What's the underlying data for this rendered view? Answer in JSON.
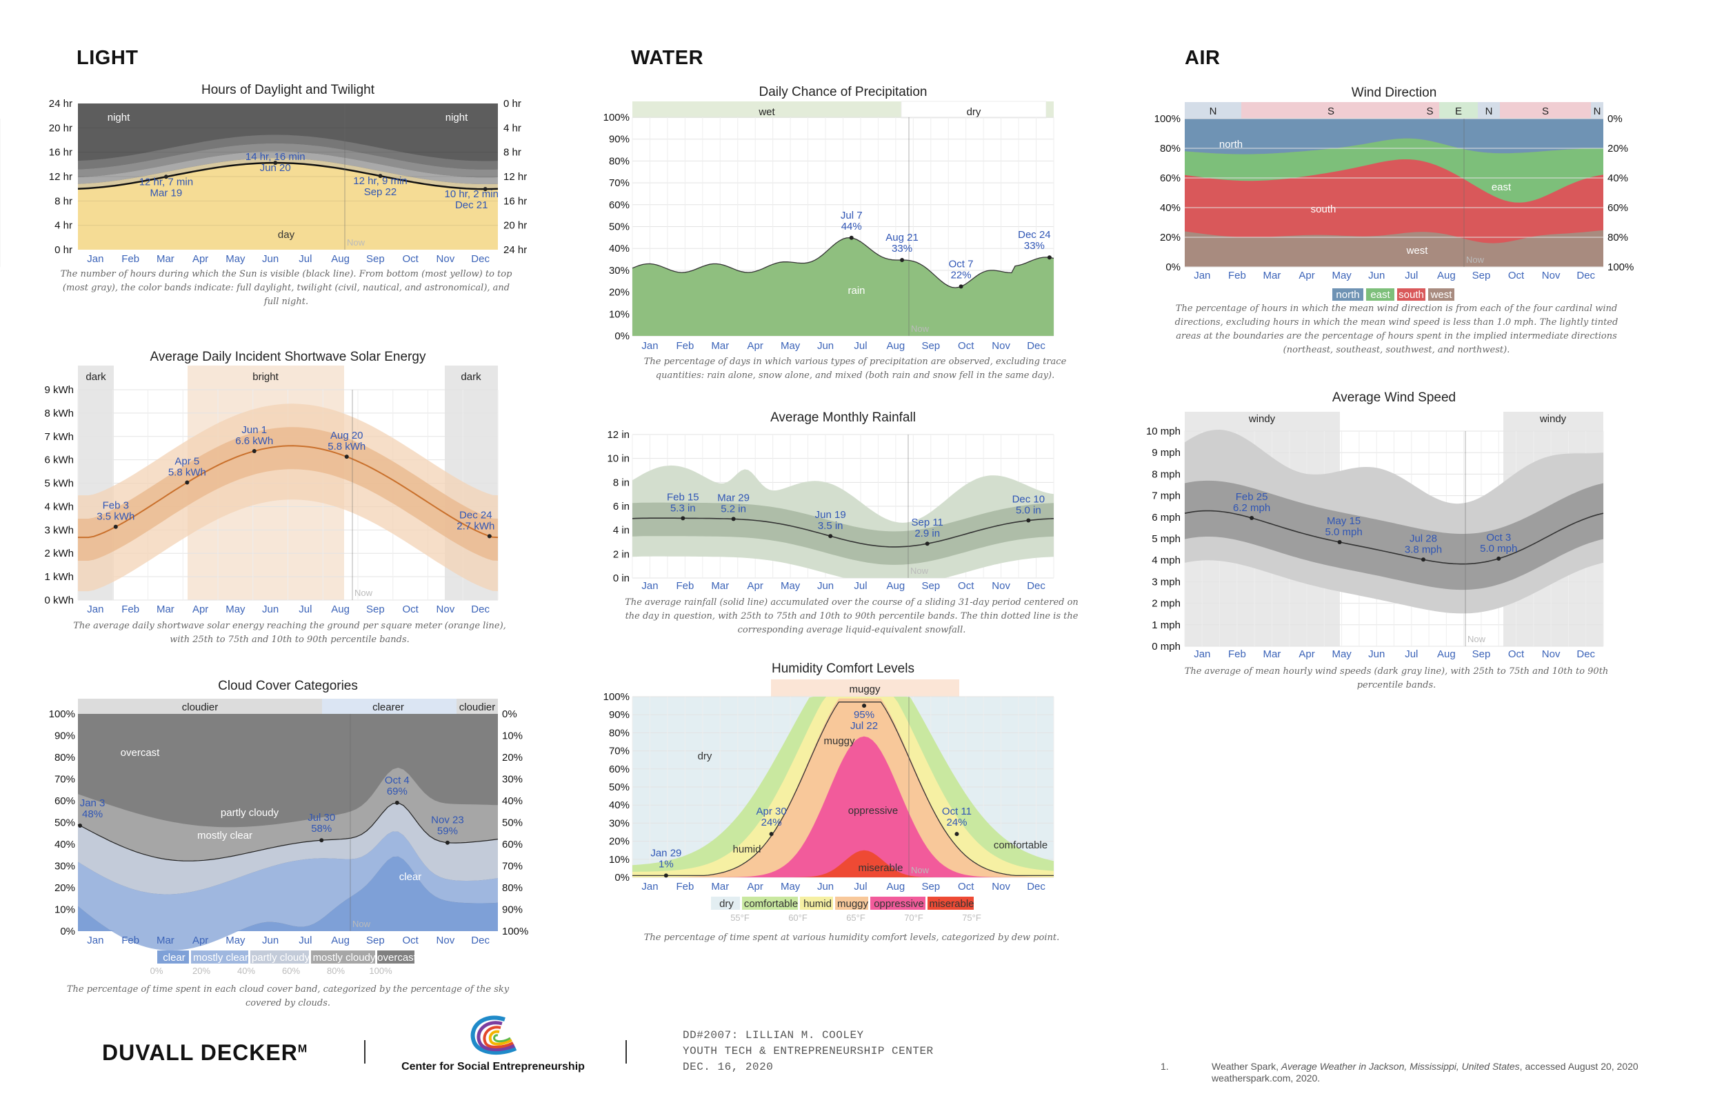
{
  "sections": {
    "light": "LIGHT",
    "water": "WATER",
    "air": "AIR"
  },
  "months": [
    "Jan",
    "Feb",
    "Mar",
    "Apr",
    "May",
    "Jun",
    "Jul",
    "Aug",
    "Sep",
    "Oct",
    "Nov",
    "Dec"
  ],
  "now_label": "Now",
  "colors": {
    "annotation": "#2f55b5",
    "month": "#3b63b8",
    "solar": "#c9702c",
    "rain": "#8fbf7f"
  },
  "charts": {
    "daylight": {
      "title": "Hours of Daylight and Twilight",
      "left_ticks": [
        "24 hr",
        "20 hr",
        "16 hr",
        "12 hr",
        "8 hr",
        "4 hr",
        "0 hr"
      ],
      "right_ticks": [
        "0 hr",
        "4 hr",
        "8 hr",
        "12 hr",
        "16 hr",
        "20 hr",
        "24 hr"
      ],
      "labels": {
        "night_left": "night",
        "night_right": "night",
        "day": "day"
      },
      "annotations": [
        {
          "l1": "12 hr, 7 min",
          "l2": "Mar 19"
        },
        {
          "l1": "14 hr, 16 min",
          "l2": "Jun 20"
        },
        {
          "l1": "12 hr, 9 min",
          "l2": "Sep 22"
        },
        {
          "l1": "10 hr, 2 min",
          "l2": "Dec 21"
        }
      ],
      "caption": "The number of hours during which the Sun is visible (black line). From bottom (most yellow) to top (most gray), the color bands indicate: full daylight, twilight (civil, nautical, and astronomical), and full night."
    },
    "solar": {
      "title": "Average Daily Incident Shortwave Solar Energy",
      "ticks": [
        "9 kWh",
        "8 kWh",
        "7 kWh",
        "6 kWh",
        "5 kWh",
        "4 kWh",
        "3 kWh",
        "2 kWh",
        "1 kWh",
        "0 kWh"
      ],
      "bands": {
        "dark_left": "dark",
        "bright": "bright",
        "dark_right": "dark"
      },
      "annotations": [
        {
          "l1": "Feb 3",
          "l2": "3.5 kWh"
        },
        {
          "l1": "Apr 5",
          "l2": "5.8 kWh"
        },
        {
          "l1": "Jun 1",
          "l2": "6.6 kWh"
        },
        {
          "l1": "Aug 20",
          "l2": "5.8 kWh"
        },
        {
          "l1": "Dec 24",
          "l2": "2.7 kWh"
        }
      ],
      "caption": "The average daily shortwave solar energy reaching the ground per square meter (orange line), with 25th to 75th and 10th to 90th percentile bands."
    },
    "cloud": {
      "title": "Cloud Cover Categories",
      "left_ticks": [
        "100%",
        "90%",
        "80%",
        "70%",
        "60%",
        "50%",
        "40%",
        "30%",
        "20%",
        "10%",
        "0%"
      ],
      "right_ticks": [
        "0%",
        "10%",
        "20%",
        "30%",
        "40%",
        "50%",
        "60%",
        "70%",
        "80%",
        "90%",
        "100%"
      ],
      "bands": {
        "cloudier": "cloudier",
        "clearer": "clearer",
        "cloudier2": "cloudier"
      },
      "labels": {
        "overcast": "overcast",
        "partly": "partly cloudy",
        "mostly": "mostly clear",
        "clear": "clear"
      },
      "annotations": [
        {
          "l1": "Jan 3",
          "l2": "48%"
        },
        {
          "l1": "Jul 30",
          "l2": "58%"
        },
        {
          "l1": "Oct 4",
          "l2": "69%"
        },
        {
          "l1": "Nov 23",
          "l2": "59%"
        }
      ],
      "legend": [
        "clear",
        "mostly clear",
        "partly cloudy",
        "mostly cloudy",
        "overcast"
      ],
      "legend_ticks": [
        "0%",
        "20%",
        "40%",
        "60%",
        "80%",
        "100%"
      ],
      "caption": "The percentage of time spent in each cloud cover band, categorized by the percentage of the sky covered by clouds."
    },
    "precip": {
      "title": "Daily Chance of Precipitation",
      "ticks": [
        "100%",
        "90%",
        "80%",
        "70%",
        "60%",
        "50%",
        "40%",
        "30%",
        "20%",
        "10%",
        "0%"
      ],
      "bands": {
        "wet": "wet",
        "dry": "dry"
      },
      "labels": {
        "rain": "rain"
      },
      "annotations": [
        {
          "l1": "Jul 7",
          "l2": "44%"
        },
        {
          "l1": "Aug 21",
          "l2": "33%"
        },
        {
          "l1": "Oct 7",
          "l2": "22%"
        },
        {
          "l1": "Dec 24",
          "l2": "33%"
        }
      ],
      "caption": "The percentage of days in which various types of precipitation are observed, excluding trace quantities: rain alone, snow alone, and mixed (both rain and snow fell in the same day)."
    },
    "rainfall": {
      "title": "Average Monthly Rainfall",
      "ticks": [
        "12 in",
        "10 in",
        "8 in",
        "6 in",
        "4 in",
        "2 in",
        "0 in"
      ],
      "annotations": [
        {
          "l1": "Feb 15",
          "l2": "5.3 in"
        },
        {
          "l1": "Mar 29",
          "l2": "5.2 in"
        },
        {
          "l1": "Jun 19",
          "l2": "3.5 in"
        },
        {
          "l1": "Sep 11",
          "l2": "2.9 in"
        },
        {
          "l1": "Dec 10",
          "l2": "5.0 in"
        }
      ],
      "caption": "The average rainfall (solid line) accumulated over the course of a sliding 31-day period centered on the day in question, with 25th to 75th and 10th to 90th percentile bands. The thin dotted line is the corresponding average liquid-equivalent snowfall."
    },
    "humidity": {
      "title": "Humidity Comfort Levels",
      "ticks": [
        "100%",
        "90%",
        "80%",
        "70%",
        "60%",
        "50%",
        "40%",
        "30%",
        "20%",
        "10%",
        "0%"
      ],
      "bands": {
        "muggy": "muggy"
      },
      "labels": {
        "dry": "dry",
        "humid": "humid",
        "muggy": "muggy",
        "oppressive": "oppressive",
        "miserable": "miserable",
        "comfortable": "comfortable"
      },
      "annotations": [
        {
          "l1": "Jan 29",
          "l2": "1%"
        },
        {
          "l1": "Apr 30",
          "l2": "24%"
        },
        {
          "l1": "95%",
          "l2": "Jul 22"
        },
        {
          "l1": "Oct 11",
          "l2": "24%"
        }
      ],
      "legend": [
        "dry",
        "comfortable",
        "humid",
        "muggy",
        "oppressive",
        "miserable"
      ],
      "legend_ticks": [
        "55°F",
        "60°F",
        "65°F",
        "70°F",
        "75°F"
      ],
      "caption": "The percentage of time spent at various humidity comfort levels, categorized by dew point."
    },
    "wind_dir": {
      "title": "Wind Direction",
      "left_ticks": [
        "100%",
        "80%",
        "60%",
        "40%",
        "20%",
        "0%"
      ],
      "right_ticks": [
        "0%",
        "20%",
        "40%",
        "60%",
        "80%",
        "100%"
      ],
      "bands": [
        "N",
        "S",
        "S",
        "E",
        "N",
        "S",
        "N"
      ],
      "labels": {
        "north": "north",
        "south": "south",
        "east": "east",
        "west": "west"
      },
      "legend": [
        "north",
        "east",
        "south",
        "west"
      ],
      "caption": "The percentage of hours in which the mean wind direction is from each of the four cardinal wind directions, excluding hours in which the mean wind speed is less than 1.0 mph. The lightly tinted areas at the boundaries are the percentage of hours spent in the implied intermediate directions (northeast, southeast, southwest, and northwest)."
    },
    "wind_speed": {
      "title": "Average Wind Speed",
      "ticks": [
        "10 mph",
        "9 mph",
        "8 mph",
        "7 mph",
        "6 mph",
        "5 mph",
        "4 mph",
        "3 mph",
        "2 mph",
        "1 mph",
        "0 mph"
      ],
      "bands": {
        "windy_left": "windy",
        "windy_right": "windy"
      },
      "annotations": [
        {
          "l1": "Feb 25",
          "l2": "6.2 mph"
        },
        {
          "l1": "May 15",
          "l2": "5.0 mph"
        },
        {
          "l1": "Jul 28",
          "l2": "3.8 mph"
        },
        {
          "l1": "Oct 3",
          "l2": "5.0 mph"
        }
      ],
      "caption": "The average of mean hourly wind speeds (dark gray line), with 25th to 75th and 10th to 90th percentile bands."
    }
  },
  "chart_data": [
    {
      "type": "area",
      "title": "Hours of Daylight and Twilight",
      "series": [
        {
          "name": "daylight hours",
          "x": [
            "Mar 19",
            "Jun 20",
            "Sep 22",
            "Dec 21"
          ],
          "values": [
            12.12,
            14.27,
            12.15,
            10.03
          ]
        }
      ],
      "ylim": [
        0,
        24
      ]
    },
    {
      "type": "line",
      "title": "Average Daily Incident Shortwave Solar Energy",
      "ylabel": "kWh",
      "x": [
        "Feb 3",
        "Apr 5",
        "Jun 1",
        "Aug 20",
        "Dec 24"
      ],
      "values": [
        3.5,
        5.8,
        6.6,
        5.8,
        2.7
      ],
      "ylim": [
        0,
        9
      ]
    },
    {
      "type": "area",
      "title": "Cloud Cover Categories",
      "x": [
        "Jan 3",
        "Jul 30",
        "Oct 4",
        "Nov 23"
      ],
      "values": [
        48,
        58,
        69,
        59
      ],
      "ylim": [
        0,
        100
      ]
    },
    {
      "type": "area",
      "title": "Daily Chance of Precipitation",
      "x": [
        "Jul 7",
        "Aug 21",
        "Oct 7",
        "Dec 24"
      ],
      "values": [
        44,
        33,
        22,
        33
      ],
      "ylim": [
        0,
        100
      ]
    },
    {
      "type": "line",
      "title": "Average Monthly Rainfall",
      "ylabel": "in",
      "x": [
        "Feb 15",
        "Mar 29",
        "Jun 19",
        "Sep 11",
        "Dec 10"
      ],
      "values": [
        5.3,
        5.2,
        3.5,
        2.9,
        5.0
      ],
      "ylim": [
        0,
        12
      ]
    },
    {
      "type": "area",
      "title": "Humidity Comfort Levels",
      "x": [
        "Jan 29",
        "Apr 30",
        "Jul 22",
        "Oct 11"
      ],
      "values": [
        1,
        24,
        95,
        24
      ],
      "ylim": [
        0,
        100
      ]
    },
    {
      "type": "area",
      "title": "Wind Direction",
      "ylim": [
        0,
        100
      ]
    },
    {
      "type": "line",
      "title": "Average Wind Speed",
      "ylabel": "mph",
      "x": [
        "Feb 25",
        "May 15",
        "Jul 28",
        "Oct 3"
      ],
      "values": [
        6.2,
        5.0,
        3.8,
        5.0
      ],
      "ylim": [
        0,
        10
      ]
    }
  ],
  "footer": {
    "firm": "DUVALL DECKER",
    "firm_mark": "M",
    "org": "Center for Social Entrepreneurship",
    "project_line1": "DD#2007: LILLIAN M. COOLEY",
    "project_line2": "YOUTH TECH & ENTREPRENEURSHIP CENTER",
    "project_line3": "DEC. 16, 2020",
    "ref_num": "1.",
    "ref_text_a": "Weather Spark, ",
    "ref_text_italic": "Average Weather in Jackson, Mississippi, United States",
    "ref_text_b": ", accessed August 20, 2020 weatherspark.com, 2020."
  }
}
